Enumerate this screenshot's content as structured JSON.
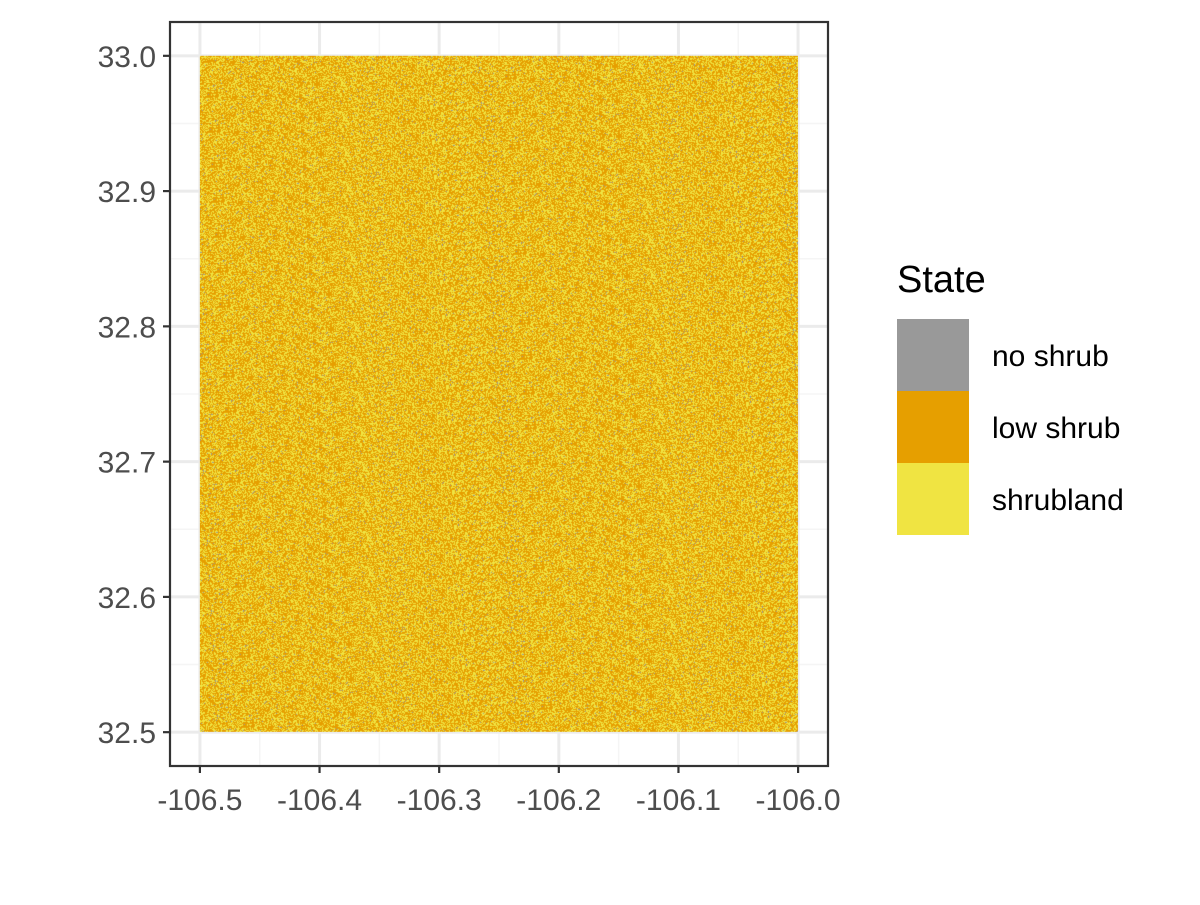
{
  "chart_data": {
    "type": "heatmap",
    "title": "",
    "xlabel": "",
    "ylabel": "",
    "xlim": [
      -106.525,
      -105.975
    ],
    "ylim": [
      32.475,
      33.025
    ],
    "raster_extent": {
      "x": [
        -106.5,
        -106.0
      ],
      "y": [
        32.5,
        33.0
      ]
    },
    "x_ticks": [
      -106.5,
      -106.4,
      -106.3,
      -106.2,
      -106.1,
      -106.0
    ],
    "x_tick_labels": [
      "-106.5",
      "-106.4",
      "-106.3",
      "-106.2",
      "-106.1",
      "-106.0"
    ],
    "y_ticks": [
      32.5,
      32.6,
      32.7,
      32.8,
      32.9,
      33.0
    ],
    "y_tick_labels": [
      "32.5",
      "32.6",
      "32.7",
      "32.8",
      "32.9",
      "33.0"
    ],
    "grid": true,
    "legend": {
      "title": "State",
      "position": "right",
      "entries": [
        {
          "label": "no shrub",
          "color": "#999999"
        },
        {
          "label": "low shrub",
          "color": "#E69F00"
        },
        {
          "label": "shrubland",
          "color": "#F0E442"
        }
      ]
    },
    "description_of_values": "random per-cell mix, mostly low shrub and shrubland, very few no shrub",
    "class_shares": {
      "no shrub": 0.02,
      "low shrub": 0.55,
      "shrubland": 0.43
    }
  },
  "colors": {
    "panel_background": "#ffffff",
    "grid_major": "#ebebeb",
    "grid_minor": "#f5f5f5",
    "panel_border": "#333333",
    "tick_text": "#4d4d4d"
  }
}
